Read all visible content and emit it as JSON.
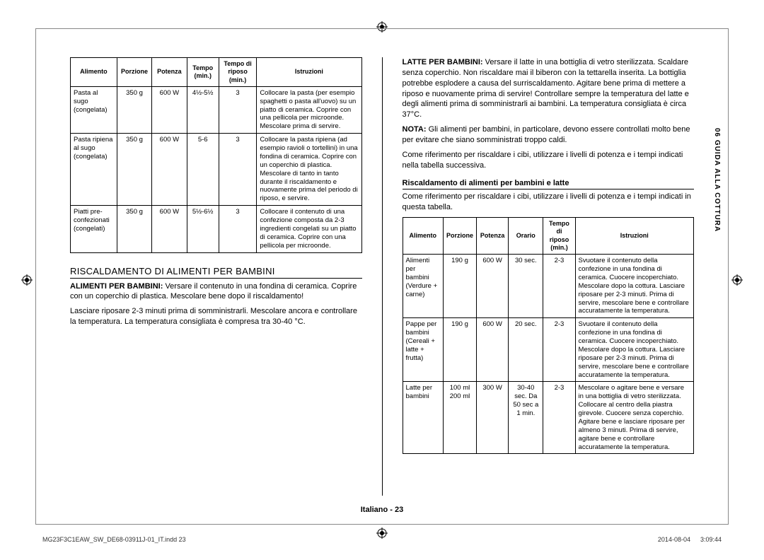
{
  "sideTab": "06  GUIDA ALLA COTTURA",
  "table1": {
    "headers": [
      "Alimento",
      "Porzione",
      "Potenza",
      "Tempo (min.)",
      "Tempo di riposo (min.)",
      "Istruzioni"
    ],
    "rows": [
      {
        "c": [
          "Pasta al sugo (congelata)",
          "350 g",
          "600 W",
          "4½-5½",
          "3",
          "Collocare la pasta (per esempio spaghetti o pasta all'uovo) su un piatto di ceramica. Coprire con una pellicola per microonde. Mescolare prima di servire."
        ]
      },
      {
        "c": [
          "Pasta ripiena al sugo (congelata)",
          "350 g",
          "600 W",
          "5-6",
          "3",
          "Collocare la pasta ripiena (ad esempio ravioli o tortellini) in una fondina di ceramica. Coprire con un coperchio di plastica. Mescolare di tanto in tanto durante il riscaldamento e nuovamente prima del periodo di riposo, e servire."
        ]
      },
      {
        "c": [
          "Piatti pre-confezionati (congelati)",
          "350 g",
          "600 W",
          "5½-6½",
          "3",
          "Collocare il contenuto di una confezione composta da 2-3 ingredienti congelati su un piatto di ceramica. Coprire con una pellicola per microonde."
        ]
      }
    ]
  },
  "section1": {
    "title": "RISCALDAMENTO DI ALIMENTI PER BAMBINI",
    "p1_bold": "ALIMENTI PER BAMBINI:",
    "p1": " Versare il contenuto in una fondina di ceramica. Coprire con un coperchio di plastica. Mescolare bene dopo il riscaldamento!",
    "p2": "Lasciare riposare 2-3 minuti prima di somministrarli. Mescolare ancora e controllare la temperatura. La temperatura consigliata è compresa tra 30-40 °C."
  },
  "rightTop": {
    "p1_bold": "LATTE PER BAMBINI:",
    "p1": " Versare il latte in una bottiglia di vetro sterilizzata. Scaldare senza coperchio. Non riscaldare mai il biberon con la tettarella inserita. La bottiglia potrebbe esplodere a causa del surriscaldamento. Agitare bene prima di mettere a riposo e nuovamente prima di servire! Controllare sempre la temperatura del latte e degli alimenti prima di somministrarli ai bambini. La temperatura consigliata è circa 37°C.",
    "p2_bold": "NOTA:",
    "p2": " Gli alimenti per bambini, in particolare, devono essere controllati molto bene per evitare che siano somministrati troppo caldi.",
    "p3": "Come riferimento per riscaldare i cibi, utilizzare i livelli di potenza e i tempi indicati nella tabella successiva."
  },
  "sub2": {
    "title": "Riscaldamento di alimenti per bambini e latte",
    "p": "Come riferimento per riscaldare i cibi, utilizzare i livelli di potenza e i tempi indicati in questa tabella."
  },
  "table2": {
    "headers": [
      "Alimento",
      "Porzione",
      "Potenza",
      "Orario",
      "Tempo di riposo (min.)",
      "Istruzioni"
    ],
    "rows": [
      {
        "c": [
          "Alimenti per bambini (Verdure + carne)",
          "190 g",
          "600 W",
          "30 sec.",
          "2-3",
          "Svuotare il contenuto della confezione in una fondina di ceramica. Cuocere incoperchiato. Mescolare dopo la cottura. Lasciare riposare per 2-3 minuti. Prima di servire, mescolare bene e controllare accuratamente la temperatura."
        ]
      },
      {
        "c": [
          "Pappe per bambini (Cereali + latte + frutta)",
          "190 g",
          "600 W",
          "20 sec.",
          "2-3",
          "Svuotare il contenuto della confezione in una fondina di ceramica. Cuocere incoperchiato. Mescolare dopo la cottura. Lasciare riposare per 2-3 minuti. Prima di servire, mescolare bene e controllare accuratamente la temperatura."
        ]
      },
      {
        "c": [
          "Latte per bambini",
          "100 ml 200 ml",
          "300 W",
          "30-40 sec. Da 50 sec a 1 min.",
          "2-3",
          "Mescolare o agitare bene e versare in una bottiglia di vetro sterilizzata. Collocare al centro della piastra girevole. Cuocere senza coperchio. Agitare bene e lasciare riposare per almeno 3 minuti. Prima di servire, agitare bene e controllare accuratamente la temperatura."
        ]
      }
    ]
  },
  "footer": "Italiano - 23",
  "printL": "MG23F3C1EAW_SW_DE68-03911J-01_IT.indd   23",
  "printR": "2014-08-04      3:09:44"
}
